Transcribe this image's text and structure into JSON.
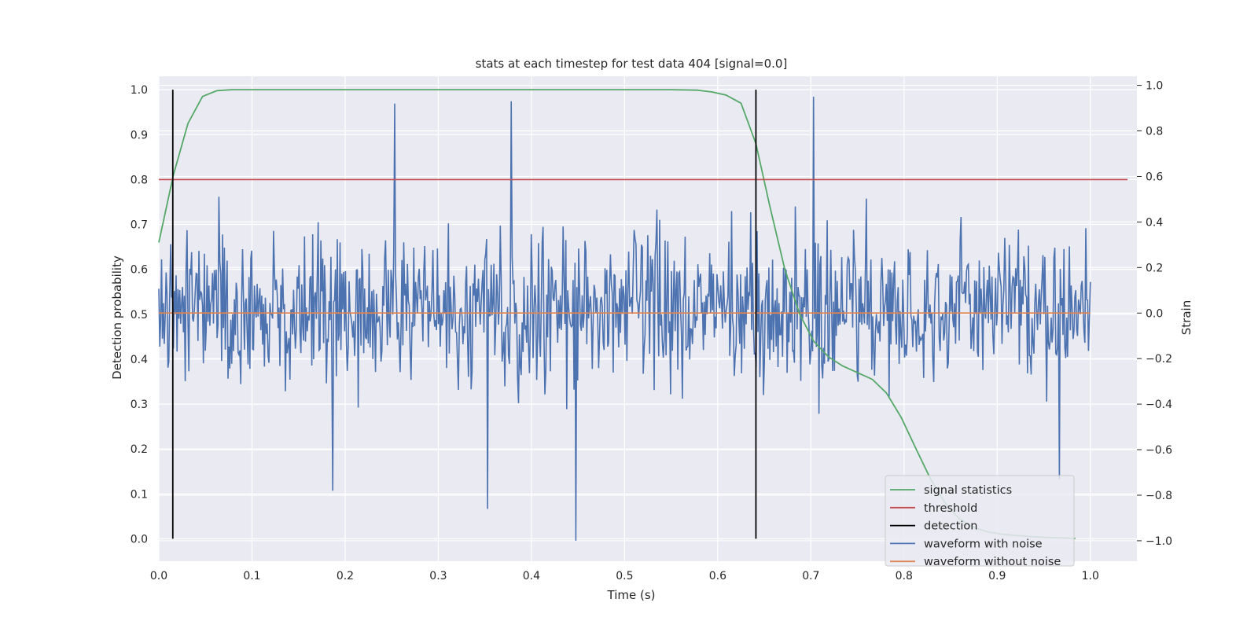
{
  "chart_data": {
    "type": "line",
    "title": "stats at each timestep for test data 404 [signal=0.0]",
    "xlabel": "Time (s)",
    "ylabel": "Detection probability",
    "ylabel_right": "Strain",
    "xlim": [
      0.0,
      1.05
    ],
    "ylim": [
      -0.05,
      1.03
    ],
    "ylim_right": [
      -1.09,
      1.04
    ],
    "xticks": [
      "0.0",
      "0.1",
      "0.2",
      "0.3",
      "0.4",
      "0.5",
      "0.6",
      "0.7",
      "0.8",
      "0.9",
      "1.0"
    ],
    "yticks": [
      "0.0",
      "0.1",
      "0.2",
      "0.3",
      "0.4",
      "0.5",
      "0.6",
      "0.7",
      "0.8",
      "0.9",
      "1.0"
    ],
    "yticks_right": [
      "−1.0",
      "−0.8",
      "−0.6",
      "−0.4",
      "−0.2",
      "0.0",
      "0.2",
      "0.4",
      "0.6",
      "0.8",
      "1.0"
    ],
    "grid": true,
    "legend_placement": "lower-right",
    "series": [
      {
        "name": "signal statistics",
        "color": "#55a868",
        "axis": "left",
        "x": [
          0.0,
          0.0156,
          0.0313,
          0.0469,
          0.0625,
          0.0781,
          0.1,
          0.2,
          0.3,
          0.4,
          0.5,
          0.55,
          0.578,
          0.594,
          0.609,
          0.625,
          0.641,
          0.656,
          0.672,
          0.688,
          0.703,
          0.719,
          0.734,
          0.75,
          0.766,
          0.781,
          0.797,
          0.813,
          0.828,
          0.844,
          0.859,
          0.875,
          0.891,
          0.906,
          0.922,
          0.938,
          0.953,
          0.969,
          0.984
        ],
        "values": [
          0.66,
          0.81,
          0.925,
          0.985,
          0.998,
          1.0,
          1.0,
          1.0,
          1.0,
          1.0,
          1.0,
          1.0,
          0.999,
          0.995,
          0.988,
          0.97,
          0.88,
          0.74,
          0.6,
          0.5,
          0.44,
          0.405,
          0.385,
          0.37,
          0.355,
          0.325,
          0.27,
          0.2,
          0.135,
          0.08,
          0.045,
          0.025,
          0.015,
          0.01,
          0.007,
          0.005,
          0.003,
          0.002,
          0.001
        ]
      },
      {
        "name": "threshold",
        "color": "#c44e52",
        "axis": "left",
        "x": [
          0.0,
          1.04
        ],
        "values": [
          0.8,
          0.8
        ]
      },
      {
        "name": "detection",
        "color": "#000000",
        "axis": "left",
        "x_positions": [
          0.015,
          0.641
        ],
        "values": [
          0.0,
          1.0
        ]
      },
      {
        "name": "waveform with noise",
        "color": "#4c72b0",
        "axis": "right",
        "noise_samples": 1024,
        "x_range": [
          0.0,
          1.0
        ],
        "values_range": [
          -1.0,
          1.0
        ],
        "notable_points": [
          {
            "x": 0.253,
            "y": 0.92
          },
          {
            "x": 0.353,
            "y": -0.86
          },
          {
            "x": 0.378,
            "y": 0.93
          },
          {
            "x": 0.448,
            "y": -1.0
          },
          {
            "x": 0.703,
            "y": 0.95
          },
          {
            "x": 0.187,
            "y": -0.78
          },
          {
            "x": 0.967,
            "y": -0.73
          }
        ]
      },
      {
        "name": "waveform without noise",
        "color": "#dd8452",
        "axis": "right",
        "x": [
          0.0,
          1.0
        ],
        "values": [
          0.0,
          0.0
        ]
      }
    ]
  }
}
